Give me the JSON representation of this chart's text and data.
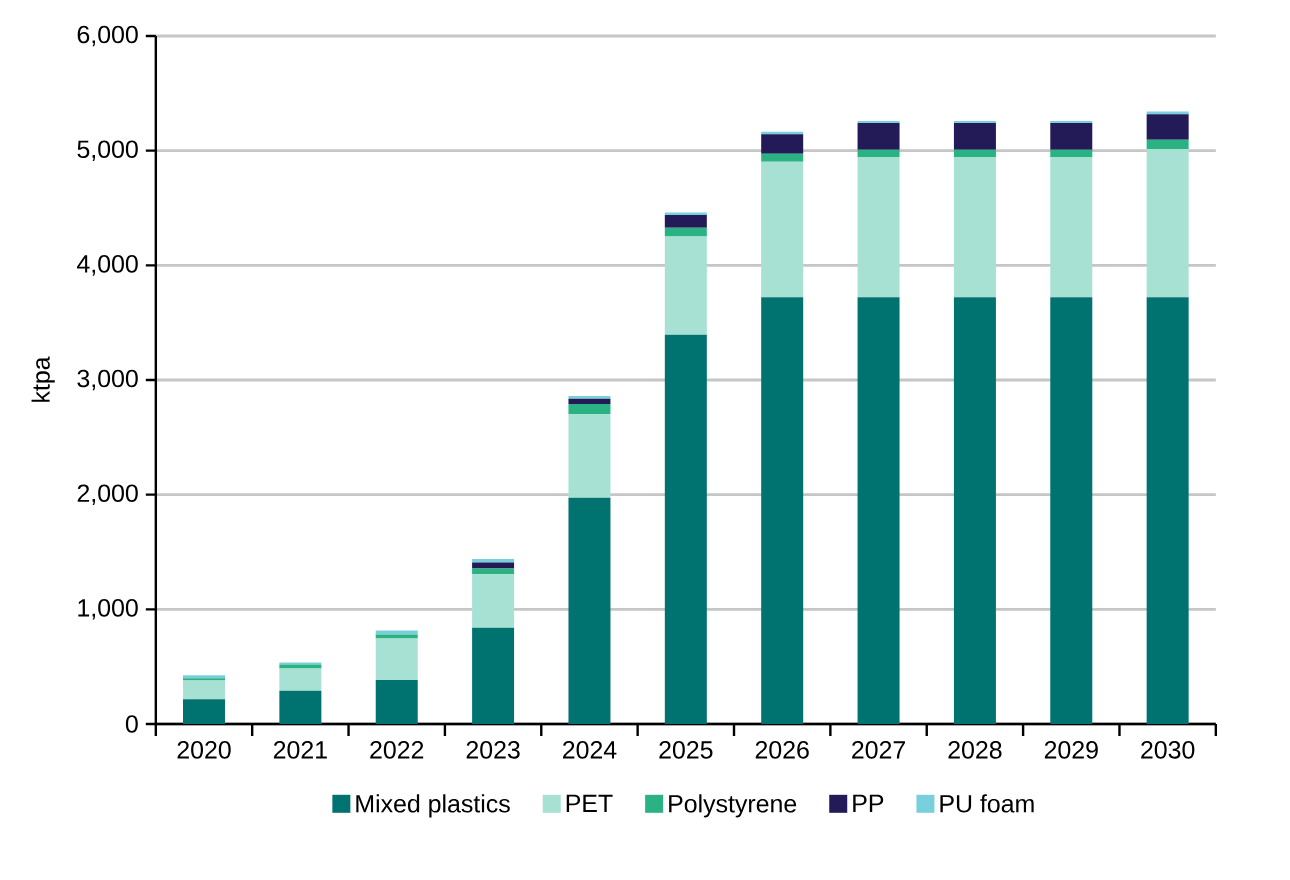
{
  "chart_data": {
    "type": "bar",
    "stacked": true,
    "ylabel": "ktpa",
    "categories": [
      "2020",
      "2021",
      "2022",
      "2023",
      "2024",
      "2025",
      "2026",
      "2027",
      "2028",
      "2029",
      "2030"
    ],
    "series": [
      {
        "name": "Mixed plastics",
        "color": "#007370",
        "values": [
          215,
          291,
          384,
          839,
          1974,
          3395,
          3722,
          3722,
          3722,
          3722,
          3722
        ]
      },
      {
        "name": "PET",
        "color": "#a6e1d3",
        "values": [
          165,
          192,
          361,
          466,
          728,
          857,
          1182,
          1223,
          1223,
          1223,
          1293
        ]
      },
      {
        "name": "Polystyrene",
        "color": "#2bb282",
        "values": [
          20,
          35,
          35,
          52,
          88,
          75,
          70,
          64,
          64,
          64,
          81
        ]
      },
      {
        "name": "PP",
        "color": "#221b57",
        "values": [
          0,
          0,
          0,
          52,
          46,
          111,
          169,
          233,
          233,
          233,
          221
        ]
      },
      {
        "name": "PU foam",
        "color": "#79cfdc",
        "values": [
          25,
          18,
          35,
          30,
          24,
          23,
          23,
          17,
          17,
          17,
          24
        ]
      }
    ],
    "ylim": [
      0,
      6000
    ],
    "yticks": [
      0,
      {
        "value": 1000,
        "label": "1,000"
      },
      {
        "value": 2000,
        "label": "2,000"
      },
      {
        "value": 3000,
        "label": "3,000"
      },
      {
        "value": 4000,
        "label": "4,000"
      },
      {
        "value": 5000,
        "label": "5,000"
      },
      {
        "value": 6000,
        "label": "6,000"
      }
    ],
    "grid": "y",
    "legend": "bottom"
  }
}
